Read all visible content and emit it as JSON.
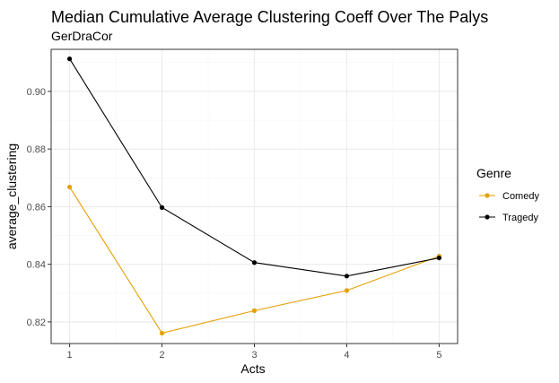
{
  "chart_data": {
    "type": "line",
    "title": "Median Cumulative Average Clustering Coeff Over The Palys",
    "subtitle": "GerDraCor",
    "xlabel": "Acts",
    "ylabel": "average_clustering",
    "x": [
      1,
      2,
      3,
      4,
      5
    ],
    "x_tick_labels": [
      "1",
      "2",
      "3",
      "4",
      "5"
    ],
    "y_ticks": [
      0.82,
      0.84,
      0.86,
      0.88,
      0.9
    ],
    "y_tick_labels": [
      "0.82",
      "0.84",
      "0.86",
      "0.88",
      "0.90"
    ],
    "xlim": [
      0.8,
      5.2
    ],
    "ylim": [
      0.8125,
      0.9146
    ],
    "grid": true,
    "legend": {
      "title": "Genre",
      "placement": "right"
    },
    "series": [
      {
        "name": "Comedy",
        "color": "#E69F00",
        "values": [
          0.8668,
          0.8161,
          0.8239,
          0.8309,
          0.8428
        ]
      },
      {
        "name": "Tragedy",
        "color": "#000000",
        "values": [
          0.9113,
          0.8597,
          0.8406,
          0.8359,
          0.8422
        ]
      }
    ]
  }
}
